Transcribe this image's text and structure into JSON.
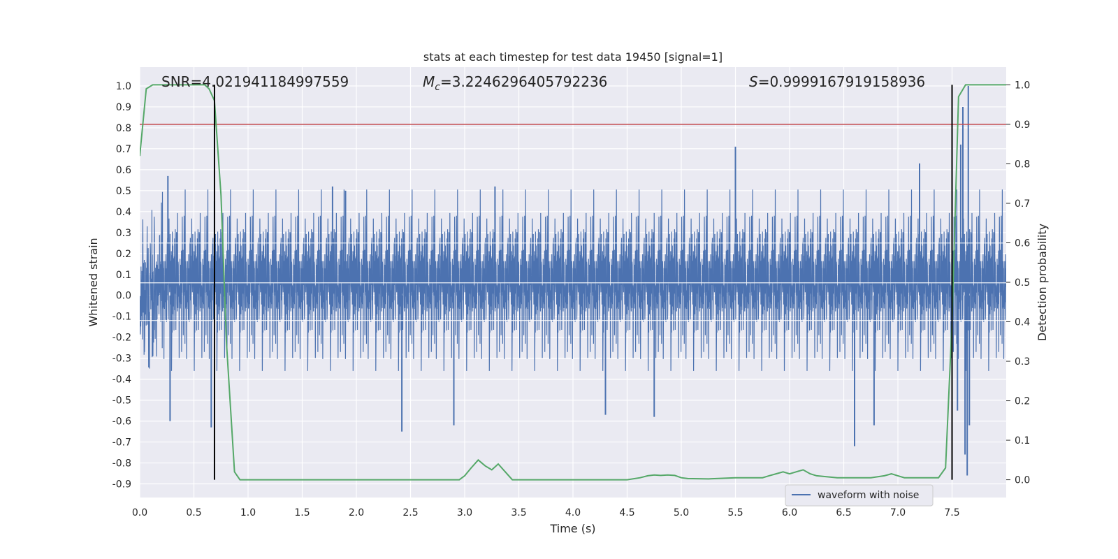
{
  "chart_data": {
    "type": "line",
    "title": "stats at each timestep for test data 19450 [signal=1]",
    "xlabel": "Time (s)",
    "ylabel_left": "Whitened strain",
    "ylabel_right": "Detection probability",
    "xlim": [
      0,
      8
    ],
    "ylim_left": [
      -0.965,
      1.09
    ],
    "ylim_right": [
      -0.045,
      1.045
    ],
    "x_ticks": [
      "0.0",
      "0.5",
      "1.0",
      "1.5",
      "2.0",
      "2.5",
      "3.0",
      "3.5",
      "4.0",
      "4.5",
      "5.0",
      "5.5",
      "6.0",
      "6.5",
      "7.0",
      "7.5"
    ],
    "x_tick_values": [
      0,
      0.5,
      1,
      1.5,
      2,
      2.5,
      3,
      3.5,
      4,
      4.5,
      5,
      5.5,
      6,
      6.5,
      7,
      7.5
    ],
    "y_ticks_left": [
      "-0.9",
      "-0.8",
      "-0.7",
      "-0.6",
      "-0.5",
      "-0.4",
      "-0.3",
      "-0.2",
      "-0.1",
      "0.0",
      "0.1",
      "0.2",
      "0.3",
      "0.4",
      "0.5",
      "0.6",
      "0.7",
      "0.8",
      "0.9",
      "1.0"
    ],
    "y_tick_values_left": [
      -0.9,
      -0.8,
      -0.7,
      -0.6,
      -0.5,
      -0.4,
      -0.3,
      -0.2,
      -0.1,
      0,
      0.1,
      0.2,
      0.3,
      0.4,
      0.5,
      0.6,
      0.7,
      0.8,
      0.9,
      1.0
    ],
    "y_ticks_right": [
      "0.0",
      "0.1",
      "0.2",
      "0.3",
      "0.4",
      "0.5",
      "0.6",
      "0.7",
      "0.8",
      "0.9",
      "1.0"
    ],
    "y_tick_values_right": [
      0,
      0.1,
      0.2,
      0.3,
      0.4,
      0.5,
      0.6,
      0.7,
      0.8,
      0.9,
      1.0
    ],
    "annotations": {
      "snr": "SNR=4.021941184997559",
      "mc_symbol": "M",
      "mc_sub": "c",
      "mc_value": "=3.2246296405792236",
      "s_symbol": "S",
      "s_value": "=0.9999167919158936"
    },
    "legend": {
      "label": "waveform with noise",
      "placement": "lower-right"
    },
    "colors": {
      "waveform": "#4c72b0",
      "probability": "#55a868",
      "threshold": "#c44e52",
      "markers": "#000000",
      "axes_bg": "#eaeaf2",
      "grid": "#ffffff"
    },
    "grid": true,
    "threshold_right": 0.9,
    "vertical_markers_x": [
      0.69,
      7.5
    ],
    "waveform": {
      "duration": 8,
      "typical_amplitude": 0.3,
      "spikes": [
        {
          "t": 0.28,
          "v": -0.6
        },
        {
          "t": 0.26,
          "v": 0.57
        },
        {
          "t": 0.66,
          "v": -0.63
        },
        {
          "t": 0.69,
          "v": 0.45
        },
        {
          "t": 1.78,
          "v": 0.52
        },
        {
          "t": 1.9,
          "v": 0.5
        },
        {
          "t": 2.42,
          "v": -0.65
        },
        {
          "t": 2.9,
          "v": -0.62
        },
        {
          "t": 3.28,
          "v": 0.52
        },
        {
          "t": 4.3,
          "v": -0.57
        },
        {
          "t": 4.75,
          "v": -0.58
        },
        {
          "t": 5.5,
          "v": 0.71
        },
        {
          "t": 6.6,
          "v": -0.72
        },
        {
          "t": 6.78,
          "v": -0.62
        },
        {
          "t": 7.2,
          "v": 0.63
        },
        {
          "t": 7.6,
          "v": 0.9
        },
        {
          "t": 7.65,
          "v": 1.0
        },
        {
          "t": 7.62,
          "v": -0.76
        },
        {
          "t": 7.64,
          "v": -0.86
        },
        {
          "t": 7.58,
          "v": 0.72
        },
        {
          "t": 7.66,
          "v": -0.62
        },
        {
          "t": 7.55,
          "v": -0.55
        }
      ]
    },
    "probability": {
      "x": [
        0,
        0.06,
        0.12,
        0.18,
        0.6,
        0.64,
        0.69,
        0.75,
        0.8,
        0.875,
        0.925,
        1.0,
        1.5,
        2.0,
        2.5,
        2.75,
        2.95,
        3.0,
        3.06,
        3.125,
        3.19,
        3.25,
        3.31,
        3.375,
        3.44,
        3.5,
        3.75,
        4.0,
        4.25,
        4.5,
        4.62,
        4.69,
        4.75,
        4.81,
        4.875,
        4.94,
        5.0,
        5.06,
        5.25,
        5.5,
        5.56,
        5.75,
        5.81,
        5.875,
        5.94,
        6.0,
        6.06,
        6.125,
        6.19,
        6.25,
        6.44,
        6.625,
        6.75,
        6.875,
        6.94,
        7.0,
        7.06,
        7.25,
        7.31,
        7.375,
        7.44,
        7.5,
        7.56,
        7.625,
        7.69,
        8.0
      ],
      "y": [
        0.82,
        0.99,
        1.0,
        1.0,
        1.0,
        0.99,
        0.96,
        0.72,
        0.35,
        0.02,
        0.0,
        0.0,
        0.0,
        0.0,
        0.0,
        0.0,
        0.0,
        0.01,
        0.03,
        0.05,
        0.035,
        0.025,
        0.04,
        0.02,
        0.0,
        0.0,
        0.0,
        0.0,
        0.0,
        0.0,
        0.005,
        0.01,
        0.012,
        0.011,
        0.012,
        0.011,
        0.005,
        0.003,
        0.002,
        0.005,
        0.005,
        0.005,
        0.01,
        0.015,
        0.02,
        0.015,
        0.02,
        0.025,
        0.015,
        0.01,
        0.005,
        0.005,
        0.005,
        0.01,
        0.015,
        0.01,
        0.005,
        0.005,
        0.005,
        0.005,
        0.03,
        0.4,
        0.97,
        1.0,
        1.0,
        1.0
      ]
    }
  }
}
